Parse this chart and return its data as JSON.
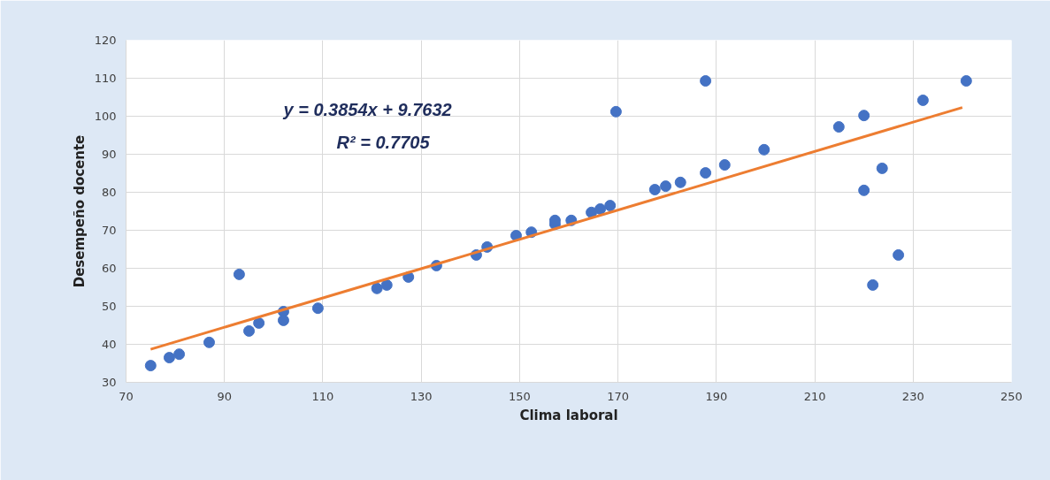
{
  "chart_data": {
    "type": "scatter",
    "xlabel": "Clima laboral",
    "ylabel": "Desempeño docente",
    "annotations": [
      "y = 0.3854x + 9.7632",
      "R² = 0.7705"
    ],
    "xlim": [
      70,
      250
    ],
    "xticks": [
      70,
      90,
      110,
      130,
      150,
      170,
      190,
      210,
      230,
      250
    ],
    "ylim": [
      30,
      120
    ],
    "yticks": [
      30,
      40,
      50,
      60,
      70,
      80,
      90,
      100,
      110,
      120
    ],
    "grid": true,
    "marker": "circle",
    "series": [
      {
        "color": "#4472c4",
        "x": [
          75,
          78.8,
          80.8,
          86.9,
          93,
          95,
          97,
          102,
          102,
          109,
          121,
          123,
          127.4,
          133.1,
          141.2,
          143.4,
          149.3,
          152.4,
          157.2,
          157.2,
          160.5,
          164.6,
          166.4,
          168.4,
          169.6,
          177.5,
          179.7,
          182.7,
          187.8,
          187.8,
          191.7,
          199.7,
          214.9,
          220,
          220,
          221.8,
          223.7,
          227,
          232,
          240.8
        ],
        "values": [
          34.4,
          36.5,
          37.4,
          40.5,
          58.4,
          43.5,
          45.6,
          48.6,
          46.3,
          49.5,
          54.7,
          55.6,
          57.7,
          60.7,
          63.5,
          65.6,
          68.6,
          69.5,
          71.6,
          72.6,
          72.6,
          74.7,
          75.6,
          76.5,
          101.2,
          80.7,
          81.6,
          82.6,
          85.1,
          109.3,
          87.2,
          91.2,
          97.2,
          100.2,
          80.5,
          55.6,
          86.3,
          63.5,
          104.2,
          109.3
        ]
      },
      {
        "type": "line",
        "color": "#ed7d31",
        "marker": "none",
        "x": [
          75,
          240
        ],
        "values": [
          38.7,
          102.3
        ]
      }
    ]
  }
}
